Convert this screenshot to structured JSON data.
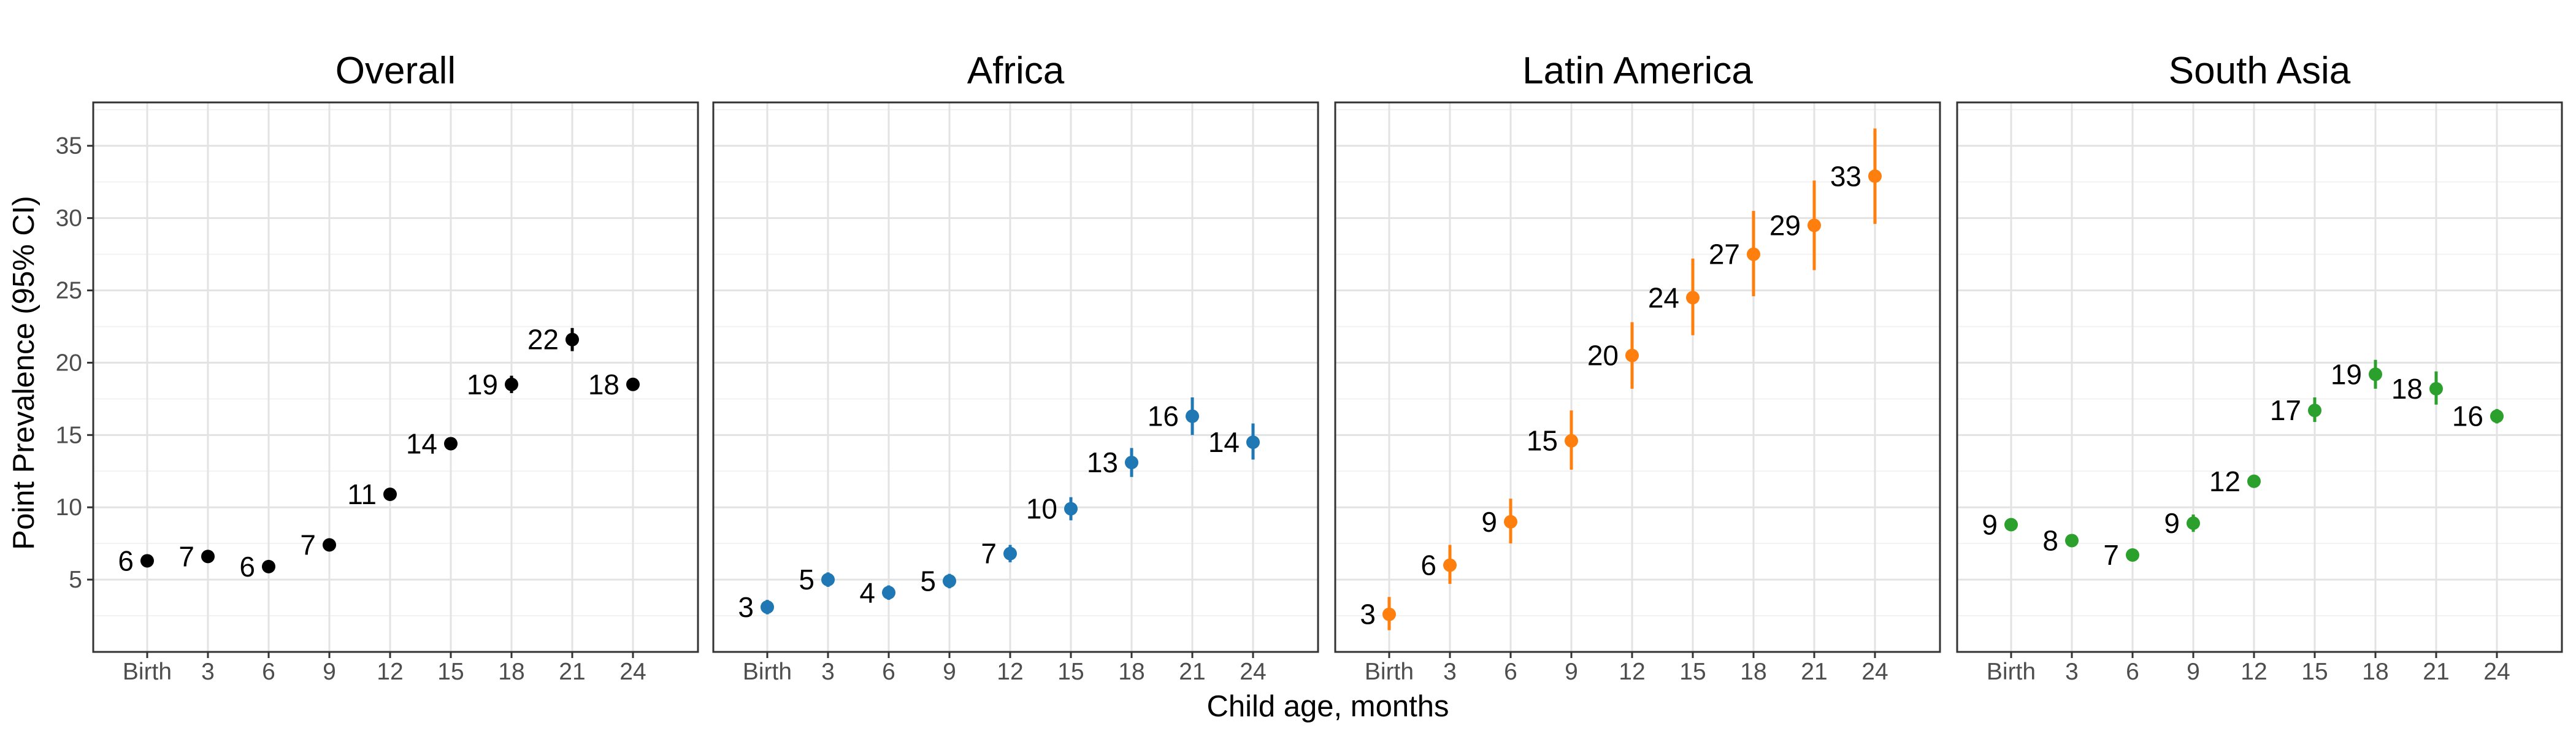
{
  "ylabel": "Point Prevalence (95% CI)",
  "xlabel": "Child age, months",
  "chart_data": [
    {
      "type": "scatter",
      "title": "Overall",
      "color": "#000000",
      "categories": [
        "Birth",
        "3",
        "6",
        "9",
        "12",
        "15",
        "18",
        "21",
        "24"
      ],
      "values": [
        6.3,
        6.6,
        5.9,
        7.4,
        10.9,
        14.4,
        18.5,
        21.6,
        18.5
      ],
      "ci_low": [
        5.9,
        6.2,
        5.5,
        7.0,
        10.5,
        14.0,
        17.9,
        20.8,
        18.1
      ],
      "ci_high": [
        6.7,
        7.0,
        6.3,
        7.8,
        11.3,
        14.8,
        19.1,
        22.4,
        18.9
      ],
      "labels": [
        "6",
        "7",
        "6",
        "7",
        "11",
        "14",
        "19",
        "22",
        "18"
      ],
      "ylim": [
        0,
        38
      ],
      "yticks": [
        5,
        10,
        15,
        20,
        25,
        30,
        35
      ],
      "grid": true
    },
    {
      "type": "scatter",
      "title": "Africa",
      "color": "#1f77b4",
      "categories": [
        "Birth",
        "3",
        "6",
        "9",
        "12",
        "15",
        "18",
        "21",
        "24"
      ],
      "values": [
        3.1,
        5.0,
        4.1,
        4.9,
        6.8,
        9.9,
        13.1,
        16.3,
        14.5
      ],
      "ci_low": [
        2.6,
        4.5,
        3.6,
        4.4,
        6.2,
        9.1,
        12.1,
        15.0,
        13.3
      ],
      "ci_high": [
        3.6,
        5.5,
        4.6,
        5.4,
        7.4,
        10.7,
        14.1,
        17.6,
        15.8
      ],
      "labels": [
        "3",
        "5",
        "4",
        "5",
        "7",
        "10",
        "13",
        "16",
        "14"
      ],
      "ylim": [
        0,
        38
      ],
      "grid": true
    },
    {
      "type": "scatter",
      "title": "Latin America",
      "color": "#ff7f0e",
      "categories": [
        "Birth",
        "3",
        "6",
        "9",
        "12",
        "15",
        "18",
        "21",
        "24"
      ],
      "values": [
        2.6,
        6.0,
        9.0,
        14.6,
        20.5,
        24.5,
        27.5,
        29.5,
        32.9
      ],
      "ci_low": [
        1.5,
        4.7,
        7.5,
        12.6,
        18.2,
        21.9,
        24.6,
        26.4,
        29.6
      ],
      "ci_high": [
        3.8,
        7.4,
        10.6,
        16.7,
        22.8,
        27.2,
        30.5,
        32.6,
        36.2
      ],
      "labels": [
        "3",
        "6",
        "9",
        "15",
        "20",
        "24",
        "27",
        "29",
        "33"
      ],
      "ylim": [
        0,
        38
      ],
      "grid": true
    },
    {
      "type": "scatter",
      "title": "South Asia",
      "color": "#2ca02c",
      "categories": [
        "Birth",
        "3",
        "6",
        "9",
        "12",
        "15",
        "18",
        "21",
        "24"
      ],
      "values": [
        8.8,
        7.7,
        6.7,
        8.9,
        11.8,
        16.7,
        19.2,
        18.2,
        16.3
      ],
      "ci_low": [
        8.4,
        7.3,
        6.3,
        8.3,
        11.4,
        15.9,
        18.2,
        17.1,
        15.8
      ],
      "ci_high": [
        9.2,
        8.1,
        7.1,
        9.5,
        12.2,
        17.6,
        20.2,
        19.4,
        16.8
      ],
      "labels": [
        "9",
        "8",
        "7",
        "9",
        "12",
        "17",
        "19",
        "18",
        "16"
      ],
      "ylim": [
        0,
        38
      ],
      "grid": true
    }
  ]
}
